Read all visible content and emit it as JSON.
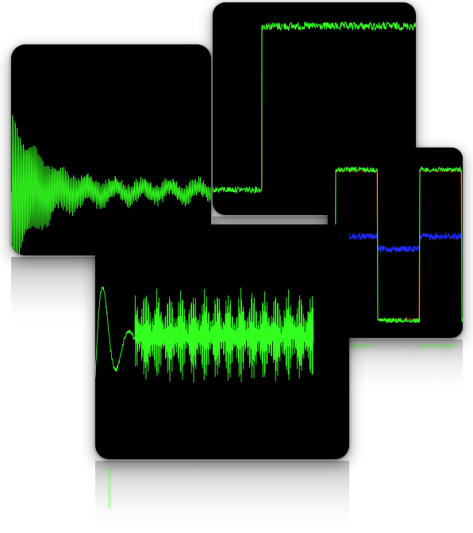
{
  "figure": {
    "background": "#ffffff",
    "panel_background": "#000000",
    "trace_colors": {
      "primary": "#33ff1f",
      "secondary": "#1f2bff",
      "accent": "#d11010"
    }
  },
  "panels": [
    {
      "id": "damped",
      "description_icon": "damped-oscillation-trace",
      "trace_color": "#33ff1f"
    },
    {
      "id": "step",
      "description_icon": "step-response-trace",
      "trace_color": "#33ff1f"
    },
    {
      "id": "square",
      "description_icon": "square-wave-traces",
      "trace_colors": [
        "#33ff1f",
        "#1f2bff",
        "#d11010"
      ]
    },
    {
      "id": "ringing",
      "description_icon": "ringing-modulated-trace",
      "trace_color": "#33ff1f"
    }
  ]
}
